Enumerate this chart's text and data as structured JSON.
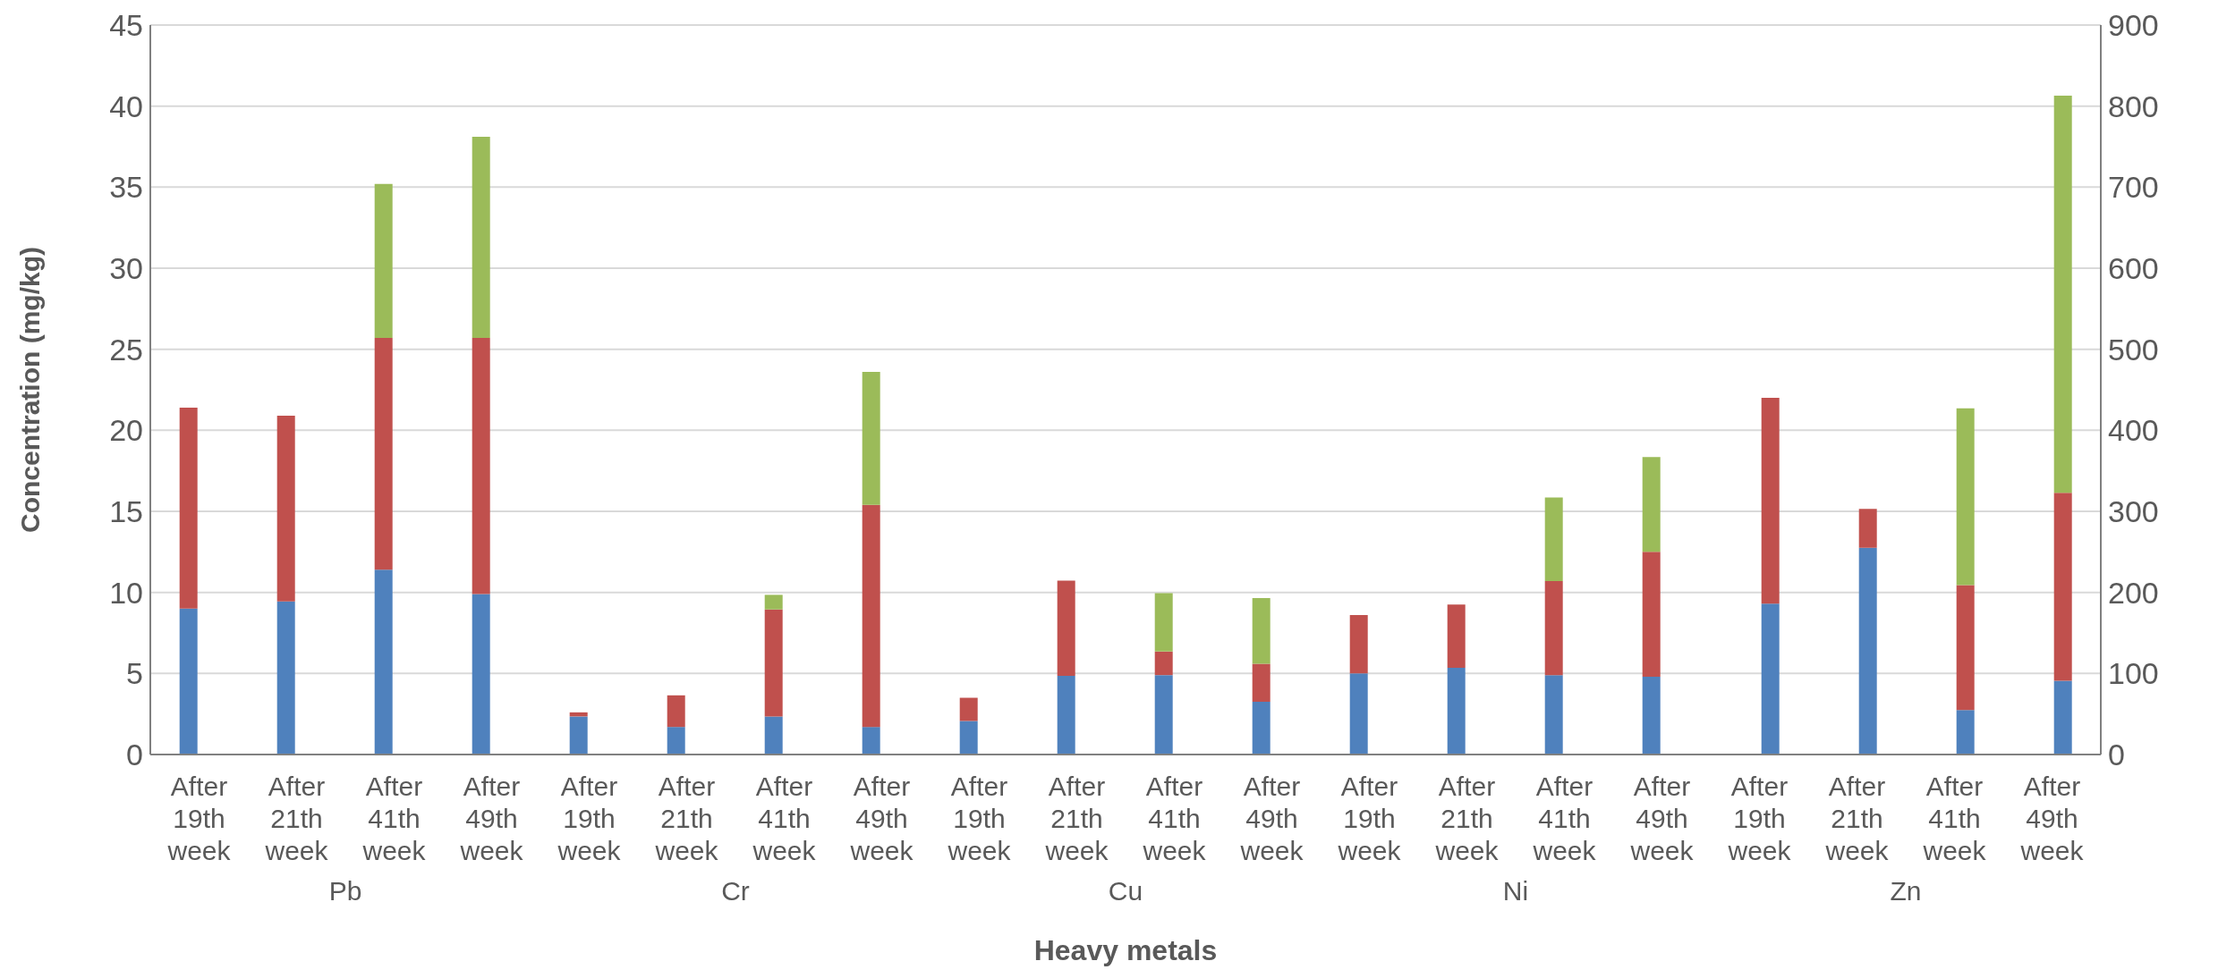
{
  "chart_data": {
    "type": "bar",
    "stacked": true,
    "ylabel": "Concentration (mg/kg)",
    "xlabel": "Heavy metals",
    "categories": [
      "After 19th week",
      "After 21th week",
      "After 41th week",
      "After 49th week",
      "After 19th week",
      "After 21th week",
      "After 41th week",
      "After 49th week",
      "After 19th week",
      "After 21th week",
      "After 41th week",
      "After 49th week",
      "After 19th week",
      "After 21th week",
      "After 41th week",
      "After 49th week",
      "After 19th week",
      "After 21th week",
      "After 41th week",
      "After 49th week"
    ],
    "annotations": [
      "Pb",
      "Cr",
      "Cu",
      "Ni",
      "Zn"
    ],
    "series": [
      {
        "color": "#4f81bd",
        "values": [
          9.0,
          9.45,
          11.4,
          9.9,
          2.35,
          1.7,
          2.35,
          1.7,
          2.07,
          4.85,
          4.9,
          3.25,
          5.0,
          5.35,
          4.9,
          4.8,
          null,
          null,
          null,
          null
        ]
      },
      {
        "color": "#c0504d",
        "values": [
          12.4,
          11.45,
          14.3,
          15.8,
          0.25,
          1.95,
          6.6,
          13.7,
          1.43,
          5.88,
          1.45,
          2.35,
          3.6,
          3.9,
          5.8,
          7.7,
          null,
          null,
          null,
          null
        ]
      },
      {
        "color": "#9bbb59",
        "values": [
          null,
          null,
          9.5,
          12.4,
          null,
          null,
          0.9,
          8.2,
          null,
          null,
          3.6,
          4.05,
          null,
          null,
          5.15,
          5.85,
          null,
          null,
          null,
          null
        ]
      },
      {
        "color": "#4f81bd",
        "axis": "y2",
        "values": [
          null,
          null,
          null,
          null,
          null,
          null,
          null,
          null,
          null,
          null,
          null,
          null,
          null,
          null,
          null,
          null,
          186,
          255,
          55,
          91
        ]
      },
      {
        "color": "#c0504d",
        "axis": "y2",
        "values": [
          null,
          null,
          null,
          null,
          null,
          null,
          null,
          null,
          null,
          null,
          null,
          null,
          null,
          null,
          null,
          null,
          254,
          48,
          154,
          232
        ]
      },
      {
        "color": "#9bbb59",
        "axis": "y2",
        "values": [
          null,
          null,
          null,
          null,
          null,
          null,
          null,
          null,
          null,
          null,
          null,
          null,
          null,
          null,
          null,
          null,
          null,
          null,
          218,
          490
        ]
      }
    ],
    "ylim": [
      0,
      45
    ],
    "yticks": [
      0,
      5,
      10,
      15,
      20,
      25,
      30,
      35,
      40,
      45
    ],
    "y2lim": [
      0,
      900
    ],
    "y2ticks": [
      0,
      100,
      200,
      300,
      400,
      500,
      600,
      700,
      800,
      900
    ],
    "grid": "y"
  }
}
